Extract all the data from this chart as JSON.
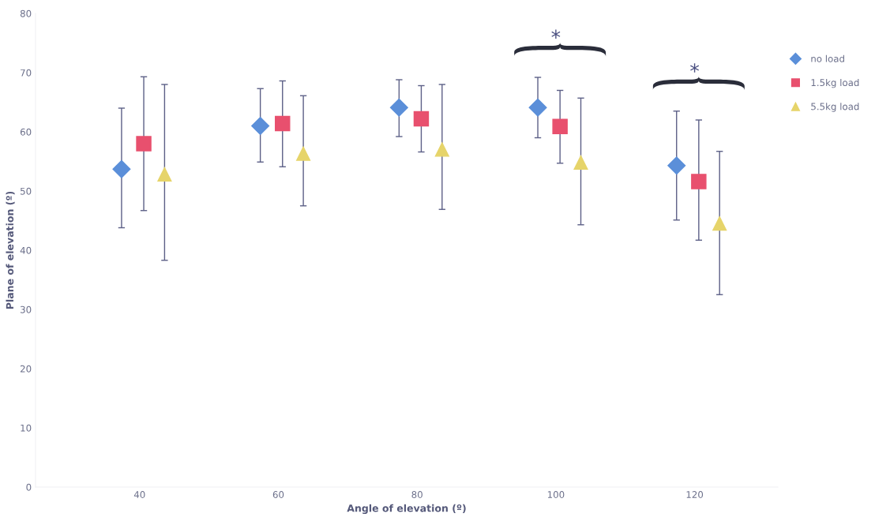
{
  "chart_data": {
    "type": "scatter",
    "xlabel": "Angle of elevation (º)",
    "ylabel": "Plane of elevation (º)",
    "categories": [
      "40",
      "60",
      "80",
      "100",
      "120"
    ],
    "series": [
      {
        "name": "no load",
        "color": "#5b8fd9",
        "marker": "diamond",
        "values": [
          53.7,
          61.0,
          64.1,
          64.1,
          54.3
        ],
        "errors": [
          [
            43.8,
            64.0
          ],
          [
            54.9,
            67.3
          ],
          [
            59.2,
            68.8
          ],
          [
            59.0,
            69.2
          ],
          [
            45.1,
            63.5
          ]
        ]
      },
      {
        "name": "1.5kg load",
        "color": "#e8506e",
        "marker": "square",
        "values": [
          58.0,
          61.4,
          62.2,
          60.9,
          51.6
        ],
        "errors": [
          [
            46.7,
            69.3
          ],
          [
            54.1,
            68.6
          ],
          [
            56.6,
            67.8
          ],
          [
            54.7,
            67.0
          ],
          [
            41.7,
            62.0
          ]
        ]
      },
      {
        "name": "5.5kg load",
        "color": "#e6d46a",
        "marker": "triangle",
        "values": [
          52.8,
          56.3,
          57.0,
          54.8,
          44.5
        ],
        "errors": [
          [
            38.3,
            68.0
          ],
          [
            47.5,
            66.1
          ],
          [
            46.9,
            68.0
          ],
          [
            44.3,
            65.7
          ],
          [
            32.5,
            56.7
          ]
        ]
      }
    ],
    "ylim": [
      0,
      80
    ],
    "yticks": [
      0,
      10,
      20,
      30,
      40,
      50,
      60,
      70,
      80
    ],
    "annotations": [
      "*",
      "*"
    ],
    "grid": false,
    "legend": "top right"
  }
}
